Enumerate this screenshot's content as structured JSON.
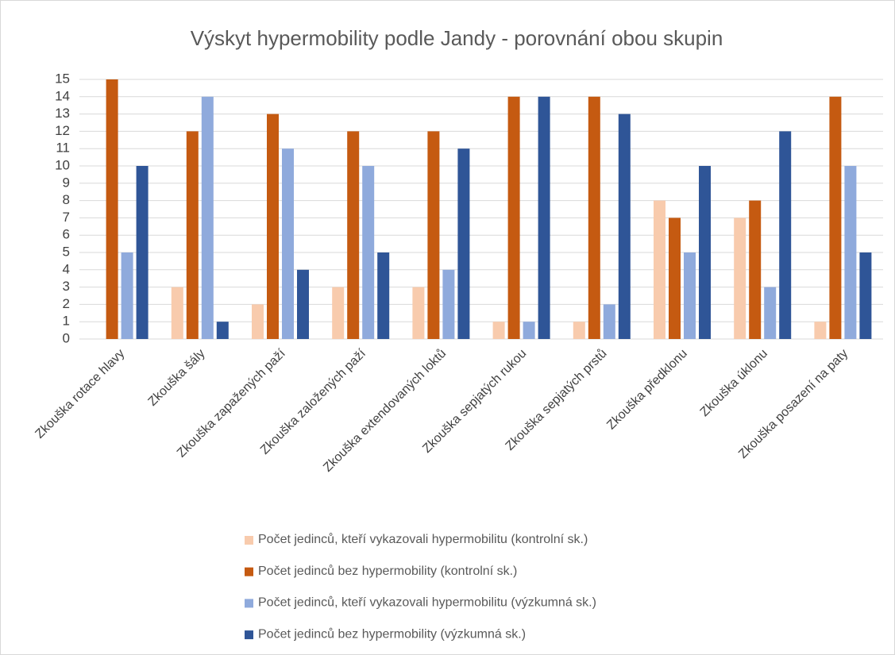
{
  "chart_data": {
    "type": "bar",
    "title": "Výskyt hypermobility podle Jandy - porovnání obou skupin",
    "categories": [
      "Zkouška rotace hlavy",
      "Zkouška šály",
      "Zkouška zapažených paží",
      "Zkouška založených paží",
      "Zkouška extendovaných loktů",
      "Zkouška sepjatých rukou",
      "Zkouška sepjatých prstů",
      "Zkouška předklonu",
      "Zkouška úklonu",
      "Zkouška posazení na paty"
    ],
    "series": [
      {
        "name": "Počet jedinců, kteří vykazovali hypermobilitu (kontrolní sk.)",
        "color": "#f8cbad",
        "values": [
          0,
          3,
          2,
          3,
          3,
          1,
          1,
          8,
          7,
          1
        ]
      },
      {
        "name": "Počet jedinců bez hypermobility (kontrolní sk.)",
        "color": "#c55a11",
        "values": [
          15,
          12,
          13,
          12,
          12,
          14,
          14,
          7,
          8,
          14
        ]
      },
      {
        "name": "Počet jedinců, kteří vykazovali hypermobilitu (výzkumná sk.)",
        "color": "#8faadc",
        "values": [
          5,
          14,
          11,
          10,
          4,
          1,
          2,
          5,
          3,
          10
        ]
      },
      {
        "name": "Počet jedinců bez hypermobility  (výzkumná sk.)",
        "color": "#2f5597",
        "values": [
          10,
          1,
          4,
          5,
          11,
          14,
          13,
          10,
          12,
          5
        ]
      }
    ],
    "ylim": [
      0,
      15
    ],
    "yticks": [
      0,
      1,
      2,
      3,
      4,
      5,
      6,
      7,
      8,
      9,
      10,
      11,
      12,
      13,
      14,
      15
    ],
    "grid": true
  }
}
